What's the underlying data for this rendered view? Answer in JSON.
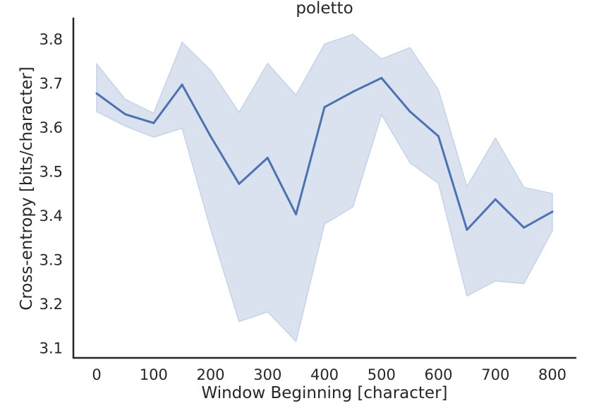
{
  "chart_data": {
    "type": "line",
    "title": "poletto",
    "xlabel": "Window Beginning [character]",
    "ylabel": "Cross-entropy [bits/character]",
    "xlim": [
      -40,
      840
    ],
    "ylim": [
      3.08,
      3.85
    ],
    "xticks": [
      0,
      100,
      200,
      300,
      400,
      500,
      600,
      700,
      800
    ],
    "yticks": [
      3.1,
      3.2,
      3.3,
      3.4,
      3.5,
      3.6,
      3.7,
      3.8
    ],
    "grid": false,
    "colors": {
      "line": "#4c72b0",
      "band": "#dae1ef",
      "band_edge": "#c6d3e8",
      "axis": "#262626"
    },
    "series": [
      {
        "x": [
          0,
          50,
          100,
          150,
          200,
          250,
          300,
          350,
          400,
          450,
          500,
          550,
          600,
          650,
          700,
          750,
          800
        ],
        "values": [
          3.677,
          3.63,
          3.61,
          3.697,
          3.58,
          3.472,
          3.531,
          3.403,
          3.646,
          3.681,
          3.712,
          3.636,
          3.58,
          3.368,
          3.437,
          3.373,
          3.409
        ],
        "ci_upper": [
          3.744,
          3.664,
          3.632,
          3.793,
          3.73,
          3.634,
          3.745,
          3.673,
          3.789,
          3.811,
          3.755,
          3.781,
          3.685,
          3.466,
          3.576,
          3.464,
          3.45
        ],
        "ci_lower": [
          3.636,
          3.603,
          3.578,
          3.598,
          3.37,
          3.16,
          3.182,
          3.115,
          3.381,
          3.42,
          3.629,
          3.52,
          3.473,
          3.218,
          3.252,
          3.246,
          3.366
        ]
      }
    ]
  }
}
